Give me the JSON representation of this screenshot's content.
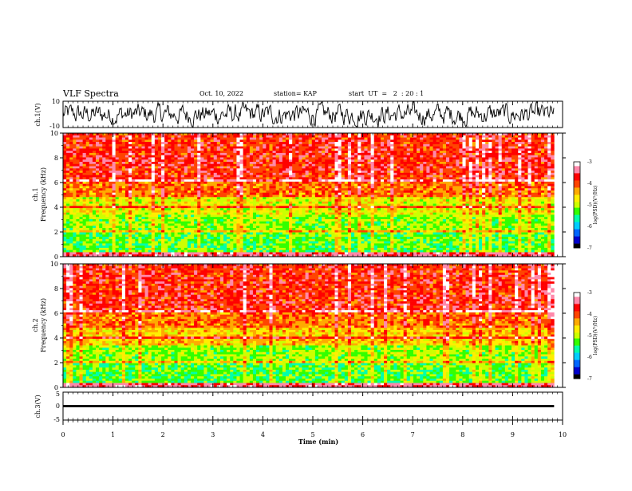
{
  "header": {
    "title": "VLF Spectra",
    "date": "Oct. 10, 2022",
    "station": "station= KAP",
    "start": "start  UT  =   2  : 20 : 1"
  },
  "chart_data": {
    "type": "heatmap",
    "x_axis": {
      "label": "Time  (min)",
      "range": [
        0,
        10
      ],
      "ticks": [
        "0",
        "1",
        "2",
        "3",
        "4",
        "5",
        "6",
        "7",
        "8",
        "9",
        "10"
      ]
    },
    "panels": [
      {
        "id": "ch1-waveform",
        "type": "line",
        "ylabel": "ch.1(V)",
        "ylim": [
          -10,
          10
        ],
        "yticks": [
          "10",
          "-10"
        ]
      },
      {
        "id": "ch1-spectrogram",
        "type": "heatmap",
        "ylabel_top": "ch.1",
        "ylabel": "Frequency  (kHz)",
        "ylim": [
          0,
          10
        ],
        "yticks": [
          "0",
          "2",
          "4",
          "6",
          "8",
          "10"
        ],
        "colorbar": {
          "label": "log(PSD)(V²/Hz)",
          "range": [
            -7,
            -3
          ],
          "ticks": [
            "-3",
            "-4",
            "-5",
            "-6",
            "-7"
          ]
        }
      },
      {
        "id": "ch2-spectrogram",
        "type": "heatmap",
        "ylabel_top": "ch.2",
        "ylabel": "Frequency  (kHz)",
        "ylim": [
          0,
          10
        ],
        "yticks": [
          "0",
          "2",
          "4",
          "6",
          "8",
          "10"
        ],
        "colorbar": {
          "label": "log(PSD)(V²/Hz)",
          "range": [
            -7,
            -3
          ],
          "ticks": [
            "-3",
            "-4",
            "-5",
            "-6",
            "-7"
          ]
        }
      },
      {
        "id": "ch3-waveform",
        "type": "line",
        "ylabel": "ch.3(V)",
        "ylim": [
          -5,
          5
        ],
        "yticks": [
          "5",
          "0",
          "-5"
        ]
      }
    ],
    "data_end_min": 9.83,
    "colormap": [
      "#000000",
      "#0000cc",
      "#0066ff",
      "#00ccff",
      "#00ffaa",
      "#33ff00",
      "#ccff00",
      "#ffee00",
      "#ffaa00",
      "#ff4400",
      "#ff0000",
      "#ff88aa",
      "#ffffff"
    ]
  }
}
